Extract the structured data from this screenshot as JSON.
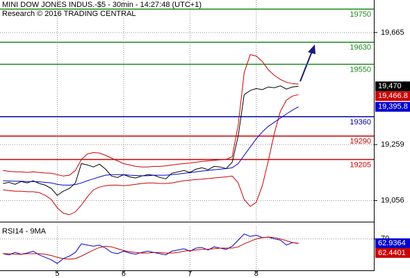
{
  "chart_data": [
    {
      "type": "line",
      "title": "MINI DOW JONES INDUS.-$5 - 30min - 14:27:48 (UTC+1)",
      "subtitle": "Research © 2016 TRADING CENTRAL",
      "categories": [
        null,
        null,
        null,
        null,
        null,
        null,
        null,
        null,
        null,
        null,
        null,
        null,
        null,
        null,
        null,
        null,
        null,
        null,
        null,
        null,
        null,
        null,
        null,
        null,
        null,
        null,
        null,
        null,
        null,
        null,
        null,
        null,
        null,
        null,
        null,
        null,
        null,
        null,
        null,
        null,
        null,
        null,
        null,
        null,
        null,
        null,
        null,
        null,
        null,
        null
      ],
      "ylim": [
        18982,
        19783
      ],
      "yticks": [
        {
          "value": 19056,
          "label": "19,056"
        },
        {
          "value": 19259,
          "label": "19,259"
        },
        {
          "value": 19665,
          "label": "19,665"
        }
      ],
      "grid": true,
      "series": [
        {
          "color": "#000000",
          "values": [
            19118,
            19122,
            19115,
            19125,
            19120,
            19128,
            19118,
            19112,
            19100,
            19075,
            19090,
            19100,
            19120,
            19190,
            19185,
            19178,
            19188,
            19170,
            19145,
            19140,
            19150,
            19142,
            19138,
            19145,
            19150,
            19148,
            19140,
            19135,
            19155,
            19160,
            19165,
            19158,
            19170,
            19175,
            19168,
            19180,
            19178,
            19172,
            19195,
            19290,
            19440,
            19455,
            19462,
            19458,
            19468,
            19465,
            19472,
            19460,
            19468,
            19470
          ]
        },
        {
          "color": "#cc0000",
          "values": [
            19165,
            19162,
            19160,
            19160,
            19158,
            19160,
            19158,
            19156,
            19155,
            19150,
            19145,
            19148,
            19165,
            19205,
            19225,
            19230,
            19228,
            19220,
            19210,
            19200,
            19190,
            19185,
            19180,
            19178,
            19178,
            19180,
            19180,
            19182,
            19185,
            19188,
            19190,
            19192,
            19195,
            19198,
            19200,
            19202,
            19204,
            19205,
            19215,
            19330,
            19520,
            19585,
            19580,
            19560,
            19530,
            19510,
            19495,
            19485,
            19480,
            19478
          ]
        },
        {
          "color": "#cc0000",
          "values": [
            19095,
            19092,
            19090,
            19090,
            19088,
            19088,
            19085,
            19075,
            19060,
            19030,
            19010,
            19005,
            19015,
            19040,
            19070,
            19095,
            19105,
            19110,
            19112,
            19112,
            19110,
            19112,
            19115,
            19118,
            19120,
            19120,
            19118,
            19118,
            19120,
            19124,
            19128,
            19130,
            19132,
            19134,
            19136,
            19138,
            19140,
            19142,
            19145,
            19120,
            19060,
            19035,
            19050,
            19110,
            19200,
            19300,
            19380,
            19420,
            19435,
            19440
          ]
        },
        {
          "color": "#0000cc",
          "values": [
            19128,
            19127,
            19126,
            19126,
            19125,
            19125,
            19124,
            19122,
            19120,
            19115,
            19112,
            19112,
            19114,
            19120,
            19128,
            19135,
            19142,
            19148,
            19150,
            19150,
            19150,
            19148,
            19147,
            19146,
            19146,
            19148,
            19148,
            19148,
            19150,
            19152,
            19155,
            19157,
            19160,
            19163,
            19165,
            19168,
            19170,
            19172,
            19175,
            19190,
            19220,
            19250,
            19280,
            19305,
            19325,
            19340,
            19355,
            19370,
            19384,
            19395.8
          ]
        }
      ],
      "levels": [
        {
          "value": 19750,
          "color": "#1a8a1a"
        },
        {
          "value": 19630,
          "color": "#1a8a1a"
        },
        {
          "value": 19550,
          "color": "#1a8a1a"
        },
        {
          "value": 19360,
          "color": "#0000aa"
        },
        {
          "value": 19290,
          "color": "#cc0000"
        },
        {
          "value": 19205,
          "color": "#cc0000"
        }
      ],
      "last_values": [
        {
          "value": 19470,
          "label": "19,470",
          "color": "#000000"
        },
        {
          "value": 19466.8,
          "label": "19,466.8",
          "color": "#cc0000"
        },
        {
          "value": 19395.8,
          "label": "19,395.8",
          "color": "#0000cc"
        }
      ]
    },
    {
      "type": "line",
      "title": "RSI14 - 9MA",
      "categories": [
        null,
        null,
        null,
        null,
        null,
        null,
        null,
        null,
        null,
        null,
        null,
        null,
        null,
        null,
        null,
        null,
        null,
        null,
        null,
        null,
        null,
        null,
        null,
        null,
        null,
        null,
        null,
        null,
        null,
        null,
        null,
        null,
        null,
        null,
        null,
        null,
        null,
        null,
        null,
        null,
        null,
        null,
        null,
        null,
        null,
        null,
        null,
        null,
        null,
        null
      ],
      "xticks": [
        {
          "value": 9,
          "label": "5"
        },
        {
          "value": 20,
          "label": "6"
        },
        {
          "value": 31,
          "label": "7"
        },
        {
          "value": 42,
          "label": "8"
        }
      ],
      "ylim": [
        20,
        90
      ],
      "yticks": [
        70
      ],
      "grid": true,
      "series": [
        {
          "color": "#0000cc",
          "values": [
            46,
            44,
            48,
            45,
            47,
            50,
            44,
            40,
            36,
            30,
            38,
            42,
            48,
            62,
            60,
            58,
            60,
            55,
            48,
            46,
            50,
            47,
            45,
            48,
            50,
            48,
            46,
            44,
            50,
            52,
            54,
            50,
            55,
            56,
            52,
            57,
            55,
            53,
            58,
            68,
            78,
            74,
            76,
            72,
            73,
            70,
            68,
            60,
            64,
            62.9364
          ]
        },
        {
          "color": "#cc0000",
          "values": [
            46,
            46,
            45,
            45,
            46,
            46,
            46,
            45,
            43,
            40,
            38,
            37,
            38,
            42,
            47,
            52,
            56,
            58,
            57,
            54,
            51,
            49,
            48,
            47,
            47,
            48,
            48,
            47,
            47,
            48,
            50,
            51,
            52,
            53,
            53,
            54,
            55,
            55,
            55,
            57,
            62,
            66,
            70,
            72,
            73,
            72,
            70,
            67,
            64,
            62.4401
          ]
        }
      ],
      "last_values": [
        {
          "value": 62.9364,
          "color": "#0000cc"
        },
        {
          "value": 62.4401,
          "color": "#cc0000"
        }
      ]
    }
  ]
}
